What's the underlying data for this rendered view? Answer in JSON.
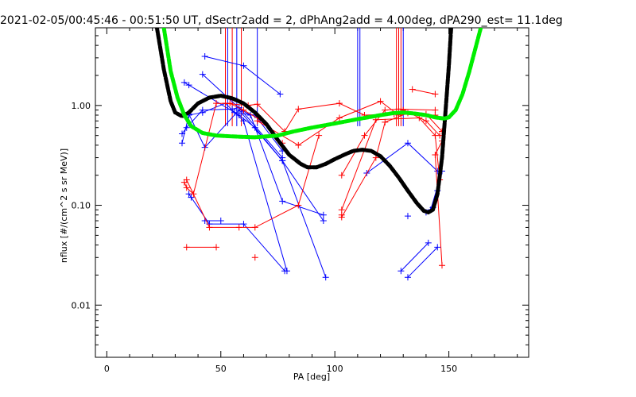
{
  "chart_data": {
    "type": "scatter",
    "title": "2021-02-05/00:45:46 - 00:51:50 UT, dSectr2add = 2, dPhAng2add = 4.00deg, dPA290_est=  11.1deg",
    "xlabel": "PA [deg]",
    "ylabel": "nflux [#/(cm^2 s sr MeV)]",
    "xlim": [
      -5,
      185
    ],
    "ylim": [
      0.003,
      6
    ],
    "yscale": "log",
    "x_ticks": [
      0,
      50,
      100,
      150
    ],
    "x_tick_labels": [
      "0",
      "50",
      "100",
      "150"
    ],
    "y_ticks": [
      0.01,
      0.1,
      1.0
    ],
    "y_tick_labels": [
      "0.01",
      "0.10",
      "1.00"
    ],
    "colors": {
      "blue": "#0000ff",
      "red": "#ff0000",
      "black": "#000000",
      "green": "#00ee00",
      "axis": "#000000"
    },
    "series": [
      {
        "color": "blue",
        "style": "line-plus",
        "segments": [
          [
            [
              34,
              1.7
            ],
            [
              36,
              1.6
            ],
            [
              58,
              0.8
            ],
            [
              65,
              0.6
            ],
            [
              77,
              0.28
            ],
            [
              95,
              0.07
            ]
          ],
          [
            [
              43,
              3.1
            ],
            [
              60,
              2.5
            ],
            [
              76,
              1.3
            ]
          ],
          [
            [
              42,
              2.05
            ],
            [
              59,
              0.9
            ],
            [
              63,
              0.8
            ],
            [
              77,
              0.11
            ],
            [
              95,
              0.08
            ]
          ],
          [
            [
              33,
              0.52
            ],
            [
              35,
              0.6
            ],
            [
              42,
              0.9
            ],
            [
              55,
              0.92
            ],
            [
              58,
              0.95
            ],
            [
              77,
              0.3
            ]
          ],
          [
            [
              33,
              0.42
            ],
            [
              36,
              0.8
            ],
            [
              42,
              0.85
            ],
            [
              52,
              1.05
            ],
            [
              60,
              0.7
            ],
            [
              79,
              0.022
            ]
          ],
          [
            [
              36,
              0.82
            ],
            [
              43,
              0.38
            ],
            [
              58,
              0.9
            ],
            [
              77,
              0.28
            ],
            [
              96,
              0.019
            ]
          ],
          [
            [
              36,
              0.13
            ],
            [
              37,
              0.12
            ],
            [
              45,
              0.065
            ],
            [
              60,
              0.065
            ],
            [
              78,
              0.022
            ]
          ],
          [
            [
              43,
              0.07
            ],
            [
              50,
              0.07
            ]
          ],
          [
            [
              56,
              0.85
            ],
            [
              65,
              0.8
            ],
            [
              77,
              0.35
            ]
          ],
          [
            [
              114,
              0.21
            ],
            [
              132,
              0.42
            ],
            [
              145,
              0.22
            ]
          ],
          [
            [
              140,
              0.085
            ],
            [
              143,
              0.095
            ]
          ],
          [
            [
              142,
              0.09
            ],
            [
              147,
              0.22
            ]
          ],
          [
            [
              129,
              0.022
            ],
            [
              141,
              0.042
            ]
          ],
          [
            [
              132,
              0.019
            ],
            [
              145,
              0.038
            ]
          ],
          [
            [
              132,
              0.078
            ]
          ],
          [
            [
              145,
              0.14
            ]
          ]
        ]
      },
      {
        "color": "red",
        "style": "line-plus",
        "segments": [
          [
            [
              34,
              0.17
            ],
            [
              35,
              0.15
            ],
            [
              38,
              0.13
            ],
            [
              48,
              1.05
            ],
            [
              54,
              1.05
            ],
            [
              60,
              0.9
            ],
            [
              68,
              0.7
            ],
            [
              77,
              0.42
            ]
          ],
          [
            [
              35,
              0.18
            ],
            [
              45,
              0.06
            ],
            [
              58,
              0.06
            ],
            [
              65,
              0.06
            ],
            [
              84,
              0.1
            ],
            [
              93,
              0.5
            ]
          ],
          [
            [
              35,
              0.038
            ],
            [
              48,
              0.038
            ]
          ],
          [
            [
              65,
              0.03
            ]
          ],
          [
            [
              52,
              1.05
            ],
            [
              62,
              1.0
            ],
            [
              66,
              1.03
            ],
            [
              78,
              0.55
            ],
            [
              84,
              0.92
            ],
            [
              102,
              1.05
            ],
            [
              113,
              0.8
            ],
            [
              126,
              0.82
            ],
            [
              144,
              0.8
            ]
          ],
          [
            [
              66,
              0.7
            ],
            [
              84,
              0.4
            ],
            [
              102,
              0.75
            ],
            [
              120,
              1.1
            ],
            [
              128,
              0.8
            ],
            [
              130,
              0.9
            ],
            [
              140,
              0.7
            ],
            [
              146,
              0.5
            ]
          ],
          [
            [
              103,
              0.09
            ],
            [
              118,
              0.72
            ],
            [
              137,
              0.75
            ],
            [
              144,
              0.5
            ],
            [
              146,
              0.18
            ]
          ],
          [
            [
              103,
              0.08
            ],
            [
              103,
              0.076
            ],
            [
              118,
              0.3
            ],
            [
              122,
              0.68
            ],
            [
              132,
              0.84
            ],
            [
              140,
              0.82
            ],
            [
              147,
              0.55
            ]
          ],
          [
            [
              103,
              0.2
            ],
            [
              113,
              0.5
            ],
            [
              122,
              0.9
            ],
            [
              128,
              0.92
            ],
            [
              144,
              0.9
            ]
          ],
          [
            [
              134,
              1.45
            ],
            [
              144,
              1.3
            ]
          ],
          [
            [
              147,
              0.44
            ],
            [
              144,
              0.32
            ],
            [
              147,
              0.025
            ]
          ]
        ]
      }
    ],
    "vertical_lines": [
      {
        "color": "red",
        "x": [
          52,
          55,
          59,
          127,
          128,
          129
        ],
        "ymin": 0.62,
        "ymax": 6
      },
      {
        "color": "blue",
        "x": [
          53,
          57,
          66,
          110,
          111,
          130
        ],
        "ymin": 0.62,
        "ymax": 6
      }
    ],
    "model_curves": [
      {
        "color": "black",
        "style": "thick-dashed",
        "points": [
          [
            22,
            6
          ],
          [
            25,
            2.3
          ],
          [
            28,
            1.1
          ],
          [
            30,
            0.85
          ],
          [
            33,
            0.78
          ],
          [
            36,
            0.85
          ],
          [
            40,
            1.05
          ],
          [
            45,
            1.2
          ],
          [
            50,
            1.25
          ],
          [
            55,
            1.18
          ],
          [
            60,
            1.05
          ],
          [
            65,
            0.85
          ],
          [
            70,
            0.65
          ],
          [
            75,
            0.45
          ],
          [
            80,
            0.32
          ],
          [
            85,
            0.26
          ],
          [
            88,
            0.24
          ],
          [
            92,
            0.24
          ],
          [
            96,
            0.26
          ],
          [
            100,
            0.29
          ],
          [
            104,
            0.32
          ],
          [
            108,
            0.35
          ],
          [
            112,
            0.36
          ],
          [
            116,
            0.35
          ],
          [
            120,
            0.31
          ],
          [
            124,
            0.25
          ],
          [
            128,
            0.19
          ],
          [
            132,
            0.14
          ],
          [
            136,
            0.105
          ],
          [
            139,
            0.088
          ],
          [
            141,
            0.085
          ],
          [
            143,
            0.09
          ],
          [
            145,
            0.13
          ],
          [
            147,
            0.3
          ],
          [
            149,
            1.2
          ],
          [
            150,
            2.5
          ],
          [
            151,
            6
          ]
        ]
      },
      {
        "color": "green",
        "style": "thick-dashed",
        "points": [
          [
            25,
            6
          ],
          [
            28,
            2.2
          ],
          [
            31,
            1.2
          ],
          [
            34,
            0.8
          ],
          [
            37,
            0.62
          ],
          [
            42,
            0.53
          ],
          [
            48,
            0.5
          ],
          [
            55,
            0.49
          ],
          [
            65,
            0.48
          ],
          [
            70,
            0.49
          ],
          [
            75,
            0.5
          ],
          [
            82,
            0.55
          ],
          [
            90,
            0.6
          ],
          [
            100,
            0.66
          ],
          [
            110,
            0.73
          ],
          [
            120,
            0.8
          ],
          [
            126,
            0.84
          ],
          [
            130,
            0.85
          ],
          [
            135,
            0.83
          ],
          [
            140,
            0.8
          ],
          [
            144,
            0.76
          ],
          [
            148,
            0.74
          ],
          [
            150,
            0.76
          ],
          [
            153,
            0.9
          ],
          [
            156,
            1.3
          ],
          [
            159,
            2.2
          ],
          [
            162,
            4
          ],
          [
            164,
            6
          ]
        ]
      }
    ]
  }
}
